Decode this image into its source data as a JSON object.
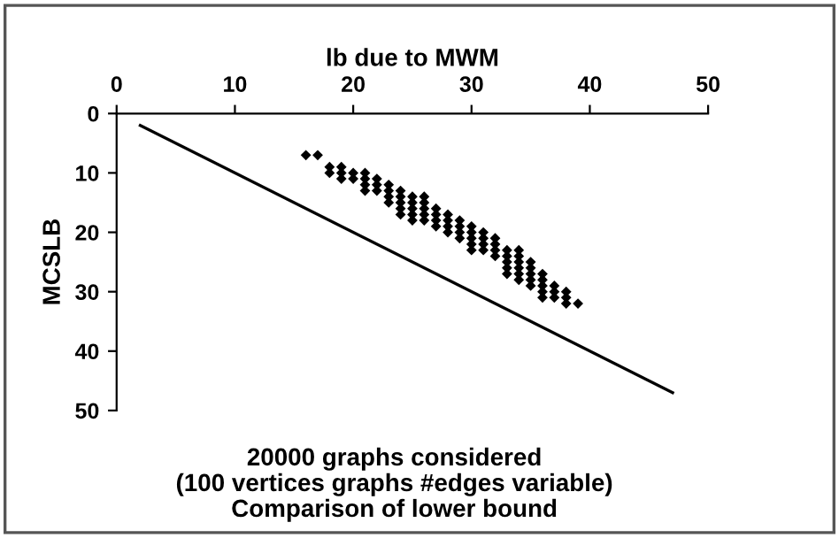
{
  "chart_data": {
    "type": "scatter",
    "title": "20000 graphs considered\n(100 vertices graphs #edges variable)\nComparison of lower bound",
    "xlabel": "lb due to MWM",
    "ylabel": "MCSLB",
    "xlim": [
      0,
      50
    ],
    "xticks": [
      0,
      10,
      20,
      30,
      40,
      50
    ],
    "ylim": [
      50,
      0
    ],
    "yticks": [
      0,
      10,
      20,
      30,
      40,
      50
    ],
    "grid": false,
    "legend": false,
    "series": [
      {
        "color": "#000000",
        "marker": "diamond",
        "x": [
          16,
          17,
          18,
          18,
          19,
          19,
          19,
          20,
          20,
          21,
          21,
          21,
          21,
          22,
          22,
          22,
          23,
          23,
          23,
          23,
          24,
          24,
          24,
          24,
          24,
          25,
          25,
          25,
          25,
          25,
          26,
          26,
          26,
          26,
          26,
          27,
          27,
          27,
          27,
          28,
          28,
          28,
          28,
          29,
          29,
          29,
          29,
          30,
          30,
          30,
          30,
          30,
          31,
          31,
          31,
          31,
          32,
          32,
          32,
          32,
          33,
          33,
          33,
          33,
          33,
          34,
          34,
          34,
          34,
          34,
          34,
          35,
          35,
          35,
          35,
          35,
          36,
          36,
          36,
          36,
          36,
          37,
          37,
          37,
          38,
          38,
          38,
          39
        ],
        "values": [
          7,
          7,
          9,
          10,
          9,
          10,
          11,
          10,
          11,
          10,
          11,
          12,
          13,
          11,
          12,
          13,
          12,
          13,
          14,
          15,
          13,
          14,
          15,
          16,
          17,
          14,
          15,
          16,
          17,
          18,
          14,
          15,
          16,
          17,
          18,
          16,
          17,
          18,
          19,
          17,
          18,
          19,
          20,
          18,
          19,
          20,
          21,
          19,
          20,
          21,
          22,
          23,
          20,
          21,
          22,
          23,
          21,
          22,
          23,
          24,
          23,
          24,
          25,
          26,
          27,
          23,
          24,
          25,
          26,
          27,
          28,
          25,
          26,
          27,
          28,
          29,
          27,
          28,
          29,
          30,
          31,
          29,
          30,
          31,
          30,
          31,
          32,
          32
        ]
      },
      {
        "type": "line",
        "color": "#000000",
        "marker": "none",
        "x": [
          2,
          47
        ],
        "values": [
          2,
          47
        ]
      }
    ]
  }
}
